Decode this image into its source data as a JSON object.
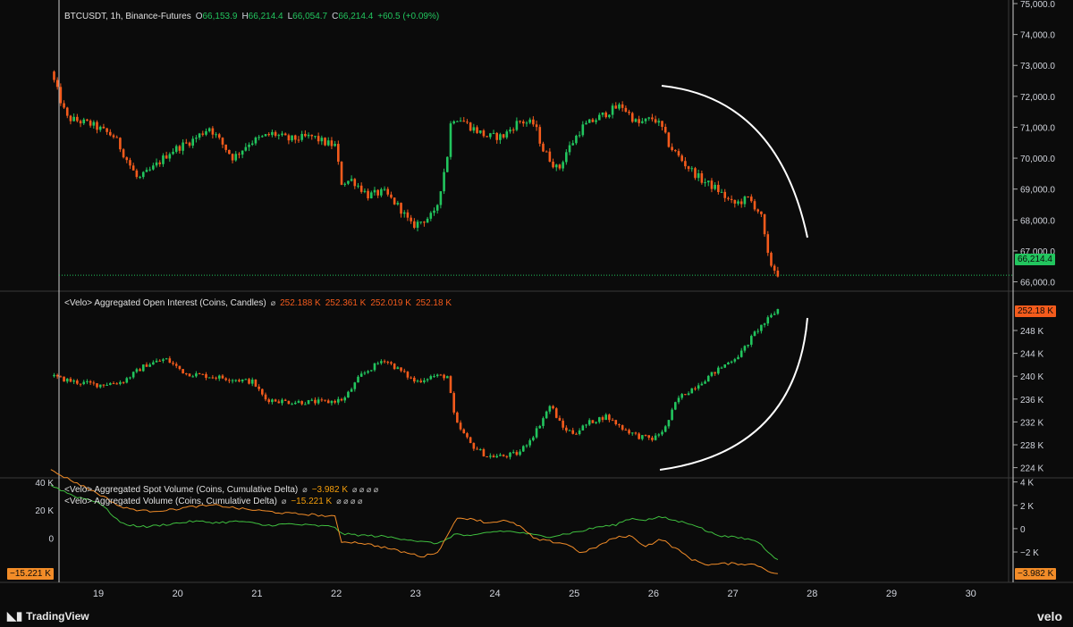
{
  "colors": {
    "up": "#22c55e",
    "down": "#f45b1c",
    "spot": "#f28c28",
    "agg": "#3fbf3f",
    "arc": "#ffffff"
  },
  "header": {
    "symbol": "BTCUSDT, 1h, Binance-Futures",
    "o_label": "O",
    "o_value": "66,153.9",
    "h_label": "H",
    "h_value": "66,214.4",
    "l_label": "L",
    "l_value": "66,054.7",
    "c_label": "C",
    "c_value": "66,214.4",
    "change": "+60.5 (+0.09%)"
  },
  "oi_legend": {
    "title": "<Velo> Aggregated Open Interest (Coins, Candles)",
    "icon": "⌀",
    "values": [
      "252.188 K",
      "252.361 K",
      "252.019 K",
      "252.18 K"
    ]
  },
  "spot_legend": {
    "title": "<Velo> Aggregated Spot Volume (Coins, Cumulative Delta)",
    "icon": "⌀",
    "value": "−3.982 K",
    "extra_icons": "⌀ ⌀ ⌀ ⌀"
  },
  "agg_legend": {
    "title": "<Velo> Aggregated Volume (Coins, Cumulative Delta)",
    "icon": "⌀",
    "value": "−15.221 K",
    "extra_icons": "⌀ ⌀ ⌀ ⌀"
  },
  "badges": {
    "price": "66,214.4",
    "oi": "252.18 K",
    "spot": "−3.982 K",
    "agg": "−15.221 K"
  },
  "footer": {
    "tradingview": "TradingView",
    "velo": "velo"
  },
  "chart_data": [
    {
      "type": "candlestick",
      "title": "BTCUSDT, 1h, Binance-Futures",
      "x_ticks": [
        "19",
        "20",
        "21",
        "22",
        "23",
        "24",
        "25",
        "26",
        "27",
        "28",
        "29",
        "30"
      ],
      "y_ticks": [
        "75,000.0",
        "74,000.0",
        "73,000.0",
        "72,000.0",
        "71,000.0",
        "70,000.0",
        "69,000.0",
        "68,000.0",
        "67,000.0",
        "66,000.0"
      ],
      "ylim": [
        65900,
        75000
      ],
      "close_path_x_day": [
        18.4,
        18.6,
        18.9,
        19.2,
        19.5,
        19.7,
        19.9,
        20.2,
        20.4,
        20.7,
        20.9,
        21.2,
        21.4,
        21.7,
        21.85,
        22.0,
        22.05,
        22.2,
        22.4,
        22.6,
        22.8,
        22.95,
        23.1,
        23.25,
        23.4,
        23.45,
        23.55,
        23.7,
        23.9,
        24.1,
        24.3,
        24.5,
        24.6,
        24.8,
        24.9,
        25.1,
        25.3,
        25.5,
        25.6,
        25.8,
        26.0,
        26.1,
        26.2,
        26.4,
        26.6,
        26.8,
        27.0,
        27.2,
        27.35,
        27.45,
        27.55,
        27.6
      ],
      "close_path_y": [
        72800,
        71300,
        71100,
        70700,
        69300,
        69700,
        70200,
        70600,
        71000,
        70000,
        70500,
        70800,
        70600,
        70700,
        70500,
        70400,
        69200,
        69300,
        68800,
        68900,
        68400,
        67800,
        68000,
        68200,
        70100,
        71300,
        71300,
        71000,
        70700,
        70700,
        71200,
        71100,
        70300,
        69600,
        70200,
        71000,
        71300,
        71600,
        71700,
        71100,
        71300,
        71000,
        70400,
        69800,
        69300,
        69000,
        68500,
        68700,
        68200,
        66700,
        66300,
        66214
      ],
      "annotation": "white arc on right side of price panel"
    },
    {
      "type": "candlestick",
      "title": "<Velo> Aggregated Open Interest (Coins, Candles)",
      "y_ticks": [
        "248 K",
        "244 K",
        "240 K",
        "236 K",
        "232 K",
        "228 K",
        "224 K"
      ],
      "ylim": [
        223,
        253
      ],
      "close_path_x_day": [
        18.4,
        18.7,
        19.0,
        19.3,
        19.6,
        19.85,
        20.1,
        20.4,
        20.7,
        20.95,
        21.1,
        21.4,
        21.7,
        21.9,
        22.1,
        22.3,
        22.6,
        22.8,
        23.0,
        23.2,
        23.4,
        23.5,
        23.7,
        23.9,
        24.1,
        24.3,
        24.5,
        24.7,
        24.85,
        25.0,
        25.2,
        25.4,
        25.6,
        25.8,
        26.0,
        26.15,
        26.3,
        26.5,
        26.7,
        26.9,
        27.1,
        27.3,
        27.45,
        27.6
      ],
      "close_path_y": [
        240,
        239,
        238.5,
        239,
        242,
        243,
        240.5,
        240,
        239.5,
        239,
        236,
        235.5,
        235.5,
        235.5,
        236,
        240,
        243,
        241,
        239,
        240,
        240,
        232,
        228,
        226,
        226,
        226.5,
        230,
        235,
        231,
        230,
        232,
        233,
        231,
        229.5,
        229,
        231,
        236,
        238,
        240,
        242,
        244,
        248,
        250,
        252.18
      ],
      "annotation": "white arc on right side of open interest panel"
    },
    {
      "type": "line",
      "series": [
        {
          "name": "<Velo> Aggregated Spot Volume (Coins, Cumulative Delta)",
          "color": "#f28c28",
          "x_day": [
            18.4,
            18.7,
            19.0,
            19.3,
            19.6,
            19.9,
            20.2,
            20.5,
            20.8,
            21.1,
            21.4,
            21.7,
            22.0,
            22.05,
            22.3,
            22.6,
            22.9,
            23.1,
            23.3,
            23.5,
            23.7,
            23.9,
            24.1,
            24.3,
            24.5,
            24.7,
            24.9,
            25.1,
            25.3,
            25.5,
            25.7,
            25.9,
            26.1,
            26.3,
            26.5,
            26.7,
            26.9,
            27.1,
            27.3,
            27.45,
            27.55,
            27.6
          ],
          "y": [
            5,
            4,
            3,
            1.8,
            1.5,
            1.6,
            1.9,
            2,
            1.7,
            1.5,
            1.3,
            1.2,
            1,
            -1.1,
            -1.2,
            -1.6,
            -2.1,
            -2.4,
            -1.9,
            0.8,
            0.9,
            0.5,
            0.7,
            0.3,
            -0.9,
            -1.1,
            -1.3,
            -2.1,
            -1.5,
            -0.8,
            -0.6,
            -1.5,
            -0.9,
            -1.8,
            -2.7,
            -3.1,
            -3,
            -3,
            -3.1,
            -3.6,
            -3.9,
            -3.982
          ]
        },
        {
          "name": "<Velo> Aggregated Volume (Coins, Cumulative Delta)",
          "color": "#3fbf3f",
          "x_day": [
            18.4,
            18.7,
            19.0,
            19.3,
            19.6,
            19.9,
            20.2,
            20.5,
            20.8,
            21.1,
            21.4,
            21.7,
            22.0,
            22.05,
            22.3,
            22.6,
            22.9,
            23.1,
            23.3,
            23.5,
            23.7,
            23.9,
            24.1,
            24.3,
            24.5,
            24.7,
            24.9,
            25.1,
            25.3,
            25.5,
            25.7,
            25.9,
            26.1,
            26.3,
            26.5,
            26.7,
            26.9,
            27.1,
            27.3,
            27.45,
            27.55,
            27.6
          ],
          "y": [
            38,
            30,
            26,
            10,
            8,
            10,
            12,
            11,
            12,
            9,
            10,
            9,
            8,
            3,
            2,
            1,
            -1,
            -3,
            -4,
            3,
            1,
            4,
            5,
            4,
            2,
            1,
            3,
            5,
            8,
            9,
            14,
            13,
            15,
            12,
            10,
            4,
            1,
            0,
            -2,
            -10,
            -15,
            -15.221
          ]
        }
      ],
      "left_y_ticks": [
        "40 K",
        "20 K",
        "0"
      ],
      "right_y_ticks": [
        "4 K",
        "2 K",
        "0",
        "−2 K"
      ],
      "left_ylim": [
        -32,
        42
      ],
      "right_ylim": [
        -4.6,
        4.2
      ]
    }
  ]
}
